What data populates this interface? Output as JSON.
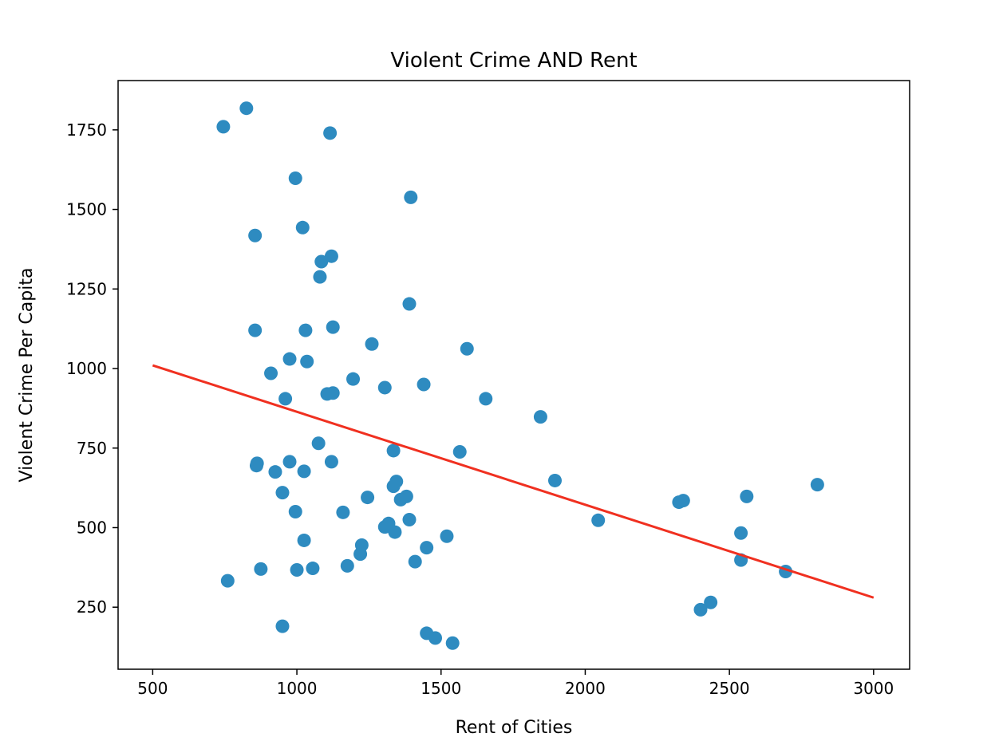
{
  "chart_data": {
    "type": "scatter",
    "title": "Violent Crime AND Rent",
    "xlabel": "Rent of Cities",
    "ylabel": "Violent Crime Per Capita",
    "xlim": [
      380,
      3125
    ],
    "ylim": [
      55,
      1905
    ],
    "xticks": [
      500,
      1000,
      1500,
      2000,
      2500,
      3000
    ],
    "yticks": [
      250,
      500,
      750,
      1000,
      1250,
      1500,
      1750
    ],
    "grid": false,
    "legend": "none",
    "colors": {
      "points": "#2e8bc0",
      "trendline": "#f03020"
    },
    "series": [
      {
        "points": [
          [
            745,
            1760
          ],
          [
            825,
            1818
          ],
          [
            1115,
            1740
          ],
          [
            995,
            1598
          ],
          [
            1395,
            1538
          ],
          [
            855,
            1418
          ],
          [
            1020,
            1443
          ],
          [
            1085,
            1336
          ],
          [
            1120,
            1353
          ],
          [
            1080,
            1288
          ],
          [
            1390,
            1203
          ],
          [
            855,
            1120
          ],
          [
            1030,
            1120
          ],
          [
            1125,
            1130
          ],
          [
            975,
            1030
          ],
          [
            1035,
            1022
          ],
          [
            1260,
            1077
          ],
          [
            1590,
            1062
          ],
          [
            910,
            985
          ],
          [
            960,
            905
          ],
          [
            1195,
            967
          ],
          [
            1105,
            920
          ],
          [
            1125,
            923
          ],
          [
            1305,
            940
          ],
          [
            1440,
            950
          ],
          [
            1655,
            905
          ],
          [
            1845,
            848
          ],
          [
            1075,
            765
          ],
          [
            860,
            695
          ],
          [
            862,
            702
          ],
          [
            975,
            707
          ],
          [
            925,
            675
          ],
          [
            1025,
            677
          ],
          [
            1120,
            707
          ],
          [
            1335,
            742
          ],
          [
            1565,
            738
          ],
          [
            1335,
            630
          ],
          [
            1345,
            645
          ],
          [
            1380,
            598
          ],
          [
            1360,
            588
          ],
          [
            1895,
            648
          ],
          [
            2325,
            580
          ],
          [
            2340,
            585
          ],
          [
            2560,
            598
          ],
          [
            2805,
            635
          ],
          [
            950,
            610
          ],
          [
            995,
            550
          ],
          [
            1160,
            548
          ],
          [
            1245,
            595
          ],
          [
            1390,
            525
          ],
          [
            2045,
            523
          ],
          [
            1305,
            502
          ],
          [
            1318,
            513
          ],
          [
            1340,
            486
          ],
          [
            1520,
            473
          ],
          [
            2540,
            483
          ],
          [
            1025,
            460
          ],
          [
            1225,
            445
          ],
          [
            1220,
            417
          ],
          [
            1450,
            437
          ],
          [
            1410,
            393
          ],
          [
            1175,
            380
          ],
          [
            875,
            370
          ],
          [
            1000,
            367
          ],
          [
            1055,
            372
          ],
          [
            2540,
            398
          ],
          [
            2695,
            362
          ],
          [
            760,
            333
          ],
          [
            2400,
            242
          ],
          [
            2435,
            265
          ],
          [
            950,
            190
          ],
          [
            1450,
            168
          ],
          [
            1480,
            153
          ],
          [
            1540,
            137
          ]
        ]
      }
    ],
    "trendline": {
      "x": [
        500,
        3000
      ],
      "y": [
        1010,
        280
      ]
    }
  }
}
